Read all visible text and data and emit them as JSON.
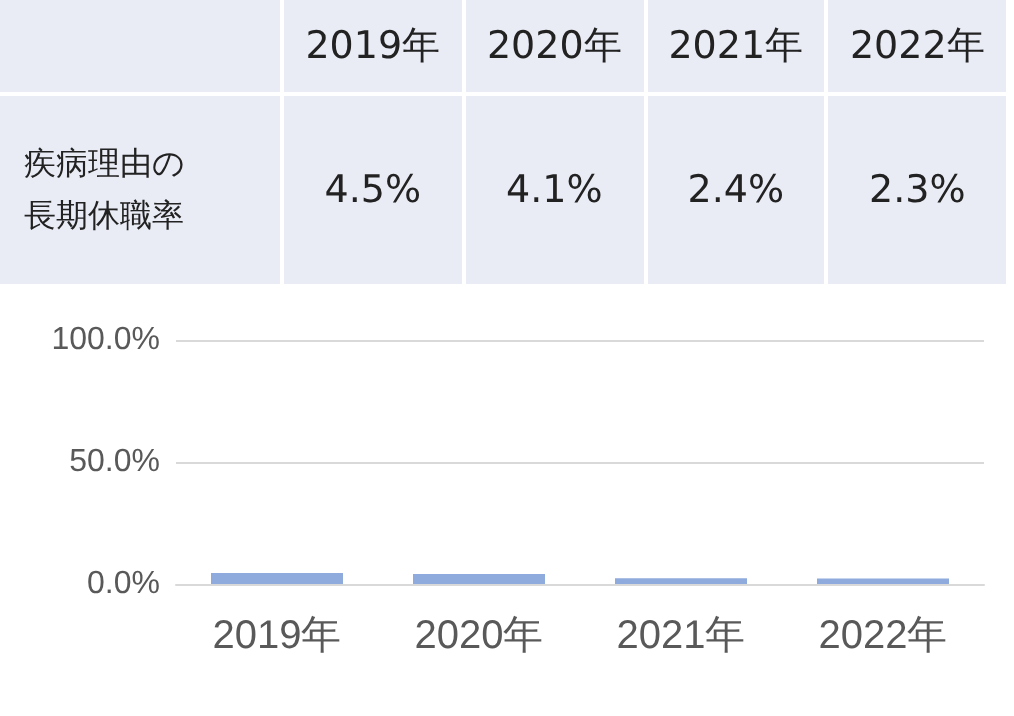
{
  "chart_data": {
    "type": "bar",
    "ylabel": "疾病理由の長期休職率",
    "categories": [
      "2019年",
      "2020年",
      "2021年",
      "2022年"
    ],
    "values": [
      4.5,
      4.1,
      2.4,
      2.3
    ],
    "value_labels": [
      "4.5%",
      "4.1%",
      "2.4%",
      "2.3%"
    ],
    "color": "#8faadc",
    "ylim": [
      0,
      100
    ],
    "yticks": [
      {
        "value": 0,
        "label": "0.0%"
      },
      {
        "value": 50,
        "label": "50.0%"
      },
      {
        "value": 100,
        "label": "100.0%"
      }
    ],
    "grid": "y"
  }
}
